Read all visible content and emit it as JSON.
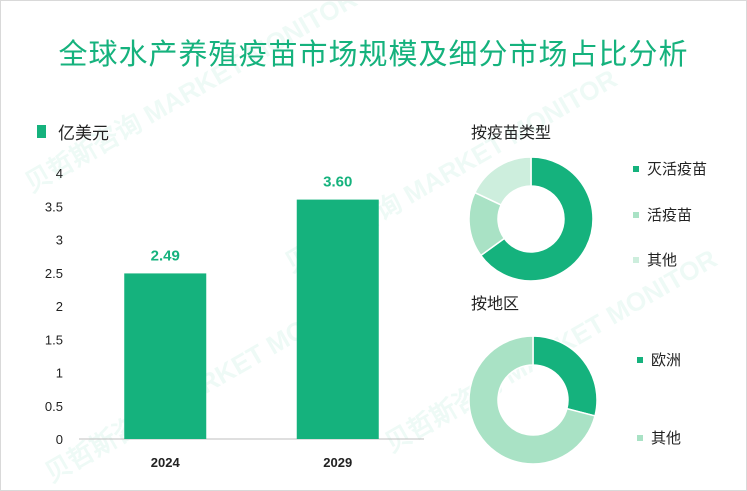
{
  "title": "全球水产养殖疫苗市场规模及细分市场占比分析",
  "unit": "亿美元",
  "watermark": "贝哲斯咨询 MARKET MONITOR",
  "colors": {
    "primary": "#15b27d",
    "light": "#a9e2c5",
    "lighter": "#cdeedd"
  },
  "chart_data": [
    {
      "type": "bar",
      "categories": [
        "2024",
        "2029"
      ],
      "values": [
        2.49,
        3.6
      ],
      "value_labels": [
        "2.49",
        "3.60"
      ],
      "yticks": [
        "0",
        "0.5",
        "1",
        "1.5",
        "2",
        "2.5",
        "3",
        "3.5",
        "4"
      ],
      "ylim": [
        0,
        4
      ],
      "ylabel": "亿美元",
      "legend": [
        "亿美元"
      ],
      "grid": false
    },
    {
      "type": "pie",
      "title": "按疫苗类型",
      "labels": [
        "灭活疫苗",
        "活疫苗",
        "其他"
      ],
      "values": [
        0.65,
        0.17,
        0.18
      ],
      "colors": [
        "#15b27d",
        "#a9e2c5",
        "#cdeedd"
      ],
      "donut": true
    },
    {
      "type": "pie",
      "title": "按地区",
      "labels": [
        "欧洲",
        "其他"
      ],
      "values": [
        0.29,
        0.71
      ],
      "colors": [
        "#15b27d",
        "#a9e2c5"
      ],
      "donut": true
    }
  ]
}
